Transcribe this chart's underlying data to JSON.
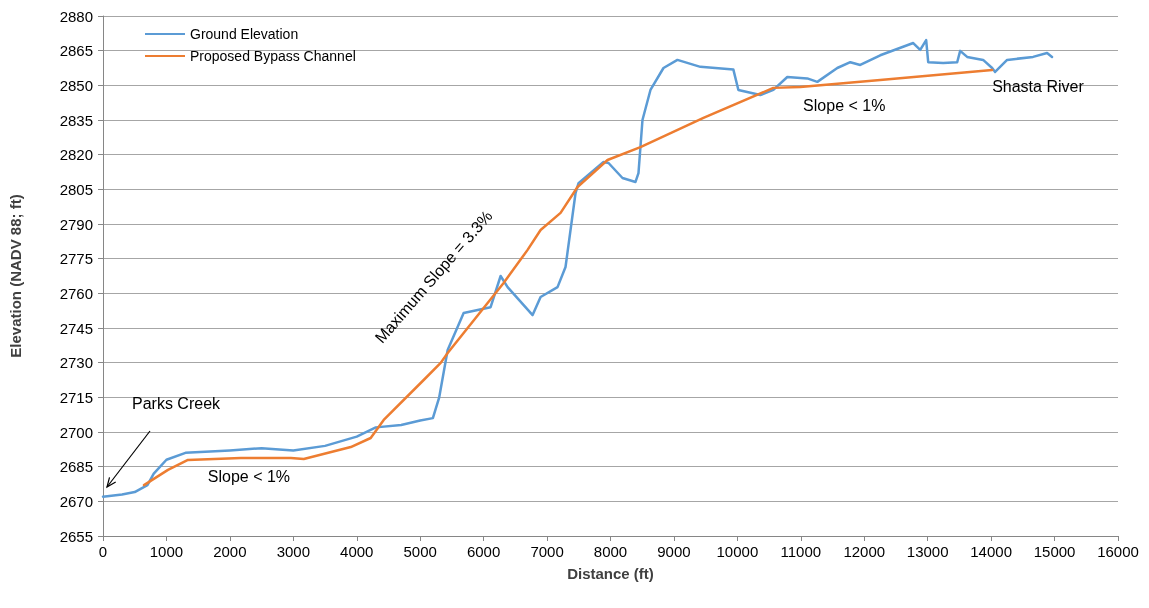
{
  "chart_data": {
    "type": "line",
    "xlabel": "Distance (ft)",
    "ylabel": "Elevation (NADV 88; ft)",
    "xlim": [
      0,
      16000
    ],
    "xticks": [
      0,
      1000,
      2000,
      3000,
      4000,
      5000,
      6000,
      7000,
      8000,
      9000,
      10000,
      11000,
      12000,
      13000,
      14000,
      15000,
      16000
    ],
    "ylim": [
      2655,
      2880
    ],
    "yticks": [
      2655,
      2670,
      2685,
      2700,
      2715,
      2730,
      2745,
      2760,
      2775,
      2790,
      2805,
      2820,
      2835,
      2850,
      2865,
      2880
    ],
    "grid": "y",
    "legend": "top left",
    "marker": "none",
    "line_style": "solid",
    "series": [
      {
        "name": "Ground Elevation",
        "color": "#5b9bd5",
        "x": [
          0,
          300,
          500,
          700,
          800,
          1000,
          1300,
          2000,
          2500,
          3000,
          3500,
          4000,
          4300,
          4700,
          5000,
          5200,
          5300,
          5433,
          5685,
          6110,
          6268,
          6378,
          6772,
          6898,
          7165,
          7291,
          7449,
          7496,
          7890,
          7969,
          8189,
          8394,
          8441,
          8504,
          8630,
          8835,
          9055,
          9417,
          9937,
          10016,
          10362,
          10567,
          10787,
          11102,
          11260,
          11575,
          11780,
          11937,
          12252,
          12772,
          12882,
          12976,
          13008,
          13244,
          13465,
          13512,
          13622,
          13874,
          14016,
          14063,
          14252,
          14661,
          14882,
          14960
        ],
        "values": [
          2672,
          2673,
          2674,
          2677,
          2682,
          2688,
          2691,
          2692,
          2693,
          2692,
          2694,
          2698,
          2702,
          2703,
          2705,
          2706,
          2715,
          2735.5,
          2751.5,
          2754,
          2767.5,
          2762.7,
          2750.6,
          2758.4,
          2762.7,
          2771.4,
          2803.4,
          2807.7,
          2816.8,
          2816.4,
          2809.9,
          2808.2,
          2812,
          2835,
          2848,
          2857.5,
          2861,
          2858,
          2856.8,
          2848,
          2845.8,
          2848,
          2853.6,
          2853,
          2851.5,
          2857.5,
          2860,
          2858.8,
          2863,
          2868.3,
          2865.3,
          2869.6,
          2860,
          2859.7,
          2860,
          2864.9,
          2862.3,
          2861,
          2857.5,
          2855.8,
          2861,
          2862.3,
          2864,
          2862.3
        ]
      },
      {
        "name": "Proposed Bypass Channel",
        "color": "#ed7d31",
        "x": [
          646,
          1024,
          1339,
          2173,
          2961,
          3165,
          3906,
          4220,
          4425,
          5055,
          5323,
          5433,
          6315,
          6693,
          6898,
          7213,
          7480,
          7953,
          8472,
          9465,
          10567,
          10992,
          12252,
          14016
        ],
        "values": [
          2677,
          2683.6,
          2687.9,
          2688.7,
          2688.7,
          2688.3,
          2693.5,
          2697.4,
          2705.2,
          2722.5,
          2729.9,
          2734.2,
          2764.5,
          2778.8,
          2787.4,
          2794.8,
          2806,
          2817.7,
          2823.3,
          2835.9,
          2848.9,
          2849.3,
          2852.3,
          2856.6
        ]
      }
    ],
    "annotations": [
      "Parks Creek",
      {
        "text": "Maximum Slope = 3.3%",
        "x": 6000,
        "y": 2752
      },
      {
        "text": "Slope < 1%",
        "x": 2300,
        "y": 2688.7
      },
      {
        "text": "Slope < 1%",
        "x": 12000,
        "y": 2851
      },
      {
        "text": "Shasta River",
        "x": 14016,
        "y": 2856.6
      }
    ]
  }
}
